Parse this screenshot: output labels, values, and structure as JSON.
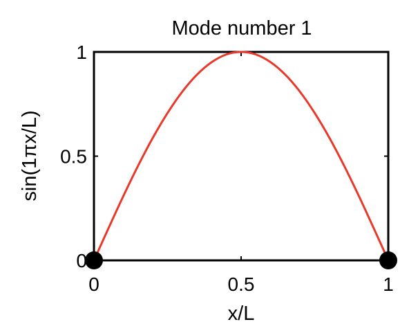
{
  "chart_data": {
    "type": "line",
    "title": "Mode number 1",
    "xlabel": "x/L",
    "ylabel": "sin(1πx/L)",
    "xlim": [
      0,
      1
    ],
    "ylim": [
      0,
      1
    ],
    "x_ticks": [
      0,
      0.5,
      1
    ],
    "x_tick_labels": [
      "0",
      "0.5",
      "1"
    ],
    "y_ticks": [
      0,
      0.5,
      1
    ],
    "y_tick_labels": [
      "0",
      "0.5",
      "1"
    ],
    "grid": false,
    "series": [
      {
        "name": "sin(1πx/L)",
        "color": "#e8392a",
        "x": [
          0,
          0.05,
          0.1,
          0.15,
          0.2,
          0.25,
          0.3,
          0.35,
          0.4,
          0.45,
          0.5,
          0.55,
          0.6,
          0.65,
          0.7,
          0.75,
          0.8,
          0.85,
          0.9,
          0.95,
          1
        ],
        "y": [
          0,
          0.156,
          0.309,
          0.454,
          0.588,
          0.707,
          0.809,
          0.891,
          0.951,
          0.988,
          1,
          0.988,
          0.951,
          0.891,
          0.809,
          0.707,
          0.588,
          0.454,
          0.309,
          0.156,
          0
        ]
      }
    ],
    "markers": [
      {
        "name": "left-node",
        "x": 0,
        "y": 0,
        "color": "#000000"
      },
      {
        "name": "right-node",
        "x": 1,
        "y": 0,
        "color": "#000000"
      }
    ],
    "axis_color": "#000000"
  }
}
